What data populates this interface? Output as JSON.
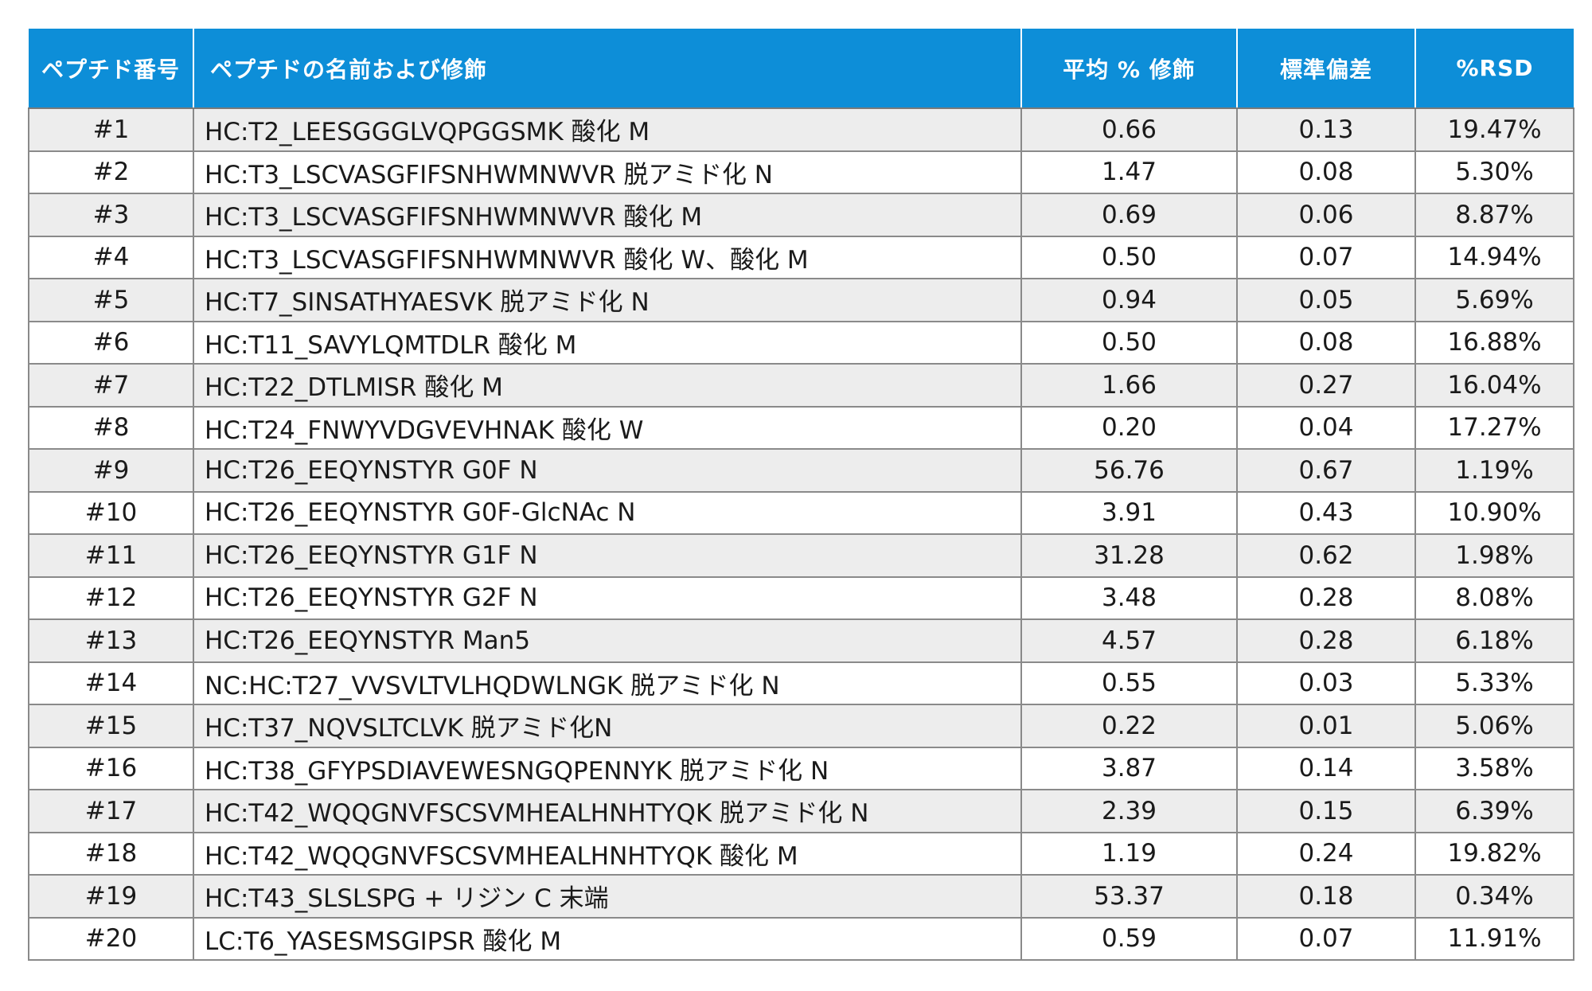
{
  "table": {
    "headers": [
      "ペプチド番号",
      "ペプチドの名前および修飾",
      "平均 % 修飾",
      "標準偏差",
      "%RSD"
    ],
    "rows": [
      [
        "#1",
        "HC:T2_LEESGGGLVQPGGSMK 酸化 M",
        "0.66",
        "0.13",
        "19.47%"
      ],
      [
        "#2",
        "HC:T3_LSCVASGFIFSNHWMNWVR 脱アミド化 N",
        "1.47",
        "0.08",
        "5.30%"
      ],
      [
        "#3",
        "HC:T3_LSCVASGFIFSNHWMNWVR 酸化 M",
        "0.69",
        "0.06",
        "8.87%"
      ],
      [
        "#4",
        "HC:T3_LSCVASGFIFSNHWMNWVR 酸化 W、酸化 M",
        "0.50",
        "0.07",
        "14.94%"
      ],
      [
        "#5",
        "HC:T7_SINSATHYAESVK 脱アミド化 N",
        "0.94",
        "0.05",
        "5.69%"
      ],
      [
        "#6",
        "HC:T11_SAVYLQMTDLR 酸化 M",
        "0.50",
        "0.08",
        "16.88%"
      ],
      [
        "#7",
        "HC:T22_DTLMISR 酸化 M",
        "1.66",
        "0.27",
        "16.04%"
      ],
      [
        "#8",
        "HC:T24_FNWYVDGVEVHNAK 酸化 W",
        "0.20",
        "0.04",
        "17.27%"
      ],
      [
        "#9",
        "HC:T26_EEQYNSTYR G0F N",
        "56.76",
        "0.67",
        "1.19%"
      ],
      [
        "#10",
        "HC:T26_EEQYNSTYR G0F-GlcNAc N",
        "3.91",
        "0.43",
        "10.90%"
      ],
      [
        "#11",
        "HC:T26_EEQYNSTYR G1F N",
        "31.28",
        "0.62",
        "1.98%"
      ],
      [
        "#12",
        "HC:T26_EEQYNSTYR G2F N",
        "3.48",
        "0.28",
        "8.08%"
      ],
      [
        "#13",
        "HC:T26_EEQYNSTYR Man5",
        "4.57",
        "0.28",
        "6.18%"
      ],
      [
        "#14",
        "NC:HC:T27_VVSVLTVLHQDWLNGK 脱アミド化 N",
        "0.55",
        "0.03",
        "5.33%"
      ],
      [
        "#15",
        "HC:T37_NQVSLTCLVK 脱アミド化N",
        "0.22",
        "0.01",
        "5.06%"
      ],
      [
        "#16",
        "HC:T38_GFYPSDIAVEWESNGQPENNYK 脱アミド化 N",
        "3.87",
        "0.14",
        "3.58%"
      ],
      [
        "#17",
        "HC:T42_WQQGNVFSCSVMHEALHNHTYQK 脱アミド化 N",
        "2.39",
        "0.15",
        "6.39%"
      ],
      [
        "#18",
        "HC:T42_WQQGNVFSCSVMHEALHNHTYQK 酸化 M",
        "1.19",
        "0.24",
        "19.82%"
      ],
      [
        "#19",
        "HC:T43_SLSLSPG + リジン C 末端",
        "53.37",
        "0.18",
        "0.34%"
      ],
      [
        "#20",
        "LC:T6_YASESMSGIPSR 酸化 M",
        "0.59",
        "0.07",
        "11.91%"
      ]
    ]
  },
  "colors": {
    "header_bg": "#0d8ed8",
    "header_text": "#ffffff",
    "row_shade": "#ededed",
    "row_plain": "#ffffff",
    "border": "#8a8a8a"
  }
}
